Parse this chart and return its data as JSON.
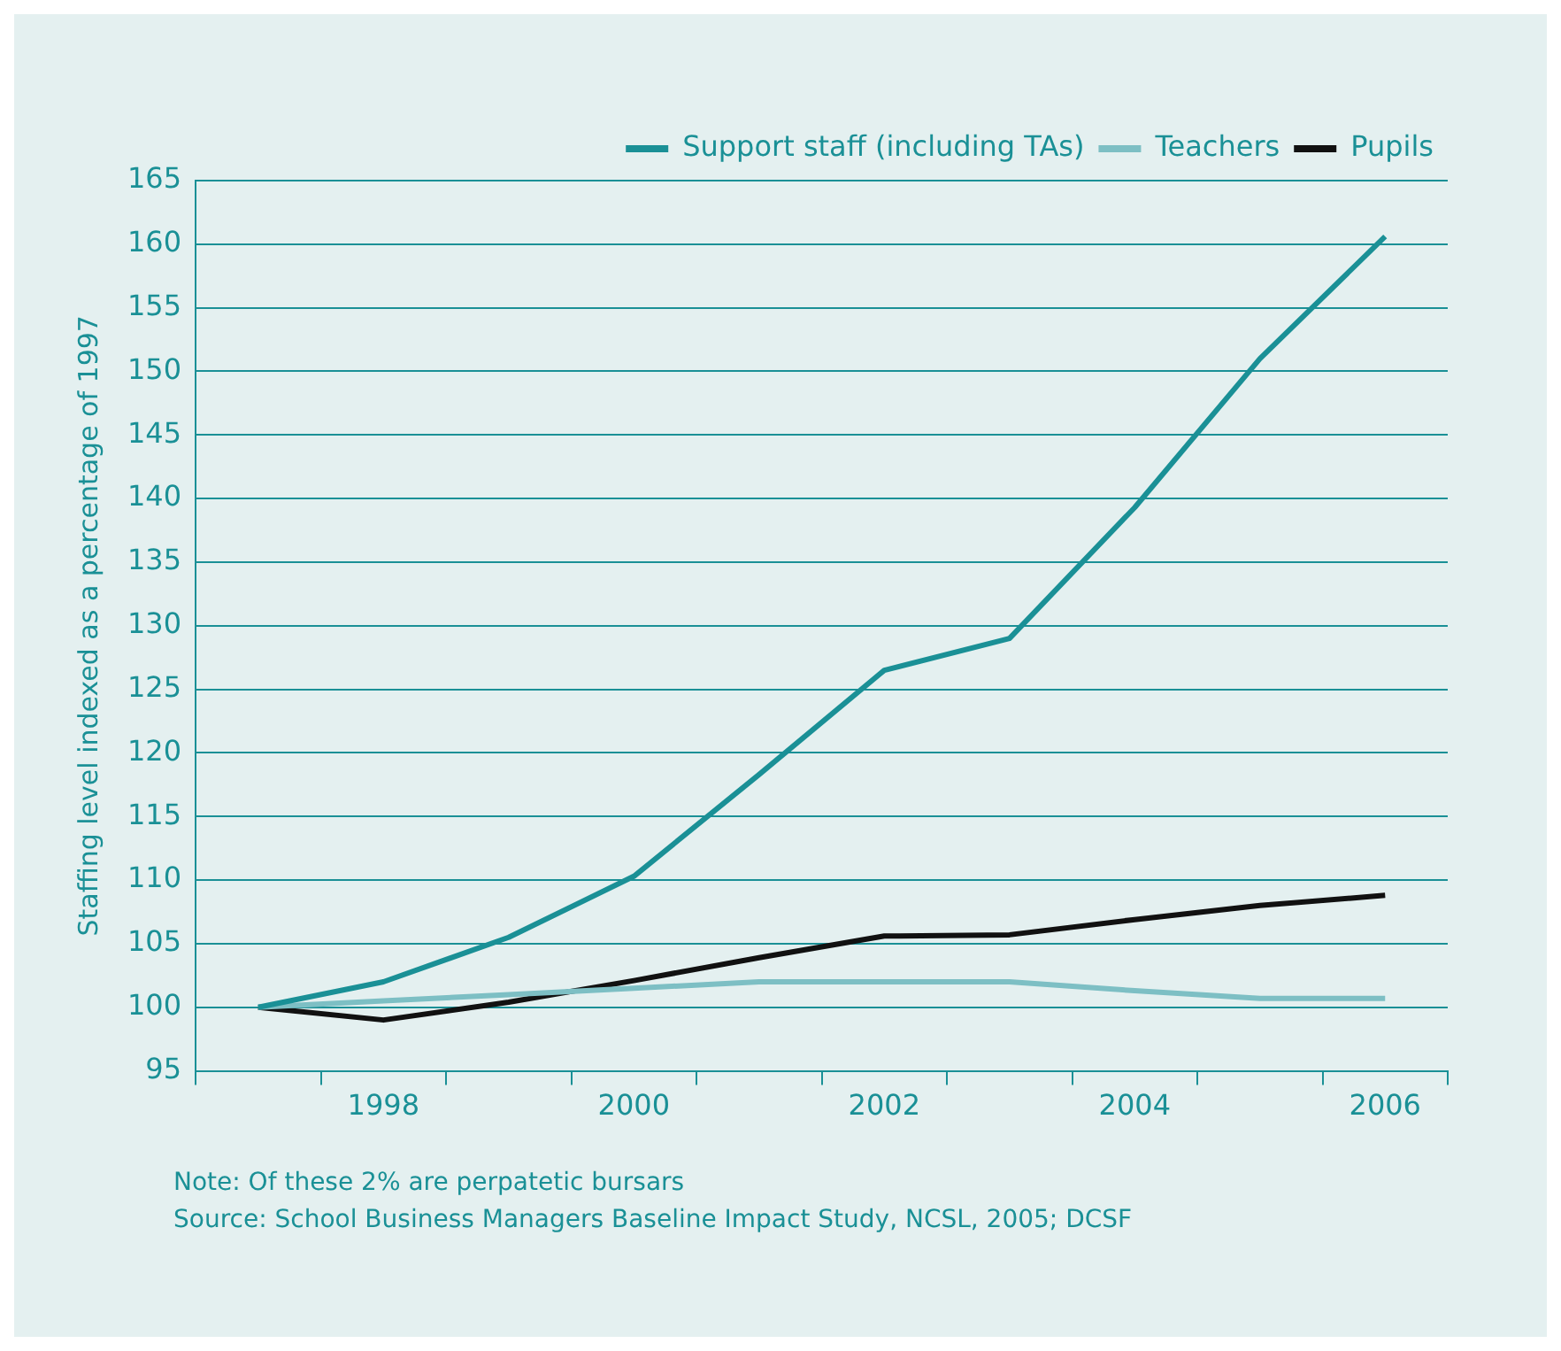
{
  "chart_data": {
    "type": "line",
    "ylabel": "Staffing level indexed as a percentage of 1997",
    "categories": [
      null,
      "1998",
      null,
      "2000",
      null,
      "2002",
      null,
      "2004",
      null,
      "2006"
    ],
    "series": [
      {
        "name": "Support staff (including TAs)",
        "color": "#1a9096",
        "values": [
          100,
          102,
          105.5,
          110.3,
          118.3,
          126.5,
          129,
          139.3,
          151,
          160.6
        ]
      },
      {
        "name": "Teachers",
        "color": "#7dbfc4",
        "values": [
          100,
          100.5,
          101,
          101.5,
          102,
          102,
          102,
          101.3,
          100.7,
          100.7
        ]
      },
      {
        "name": "Pupils",
        "color": "#111111",
        "values": [
          100,
          99,
          100.4,
          102.1,
          103.9,
          105.6,
          105.7,
          106.9,
          108,
          108.8
        ]
      }
    ],
    "ylim": [
      95,
      165
    ],
    "yticks": [
      95,
      100,
      105,
      110,
      115,
      120,
      125,
      130,
      135,
      140,
      145,
      150,
      155,
      160,
      165
    ],
    "grid": "y",
    "legend": "top right",
    "marker": "none",
    "line_style": "solid",
    "annotations": [
      "Note: Of these 2% are perpatetic bursars",
      "Source: School Business Managers Baseline Impact Study, NCSL, 2005; DCSF"
    ]
  }
}
